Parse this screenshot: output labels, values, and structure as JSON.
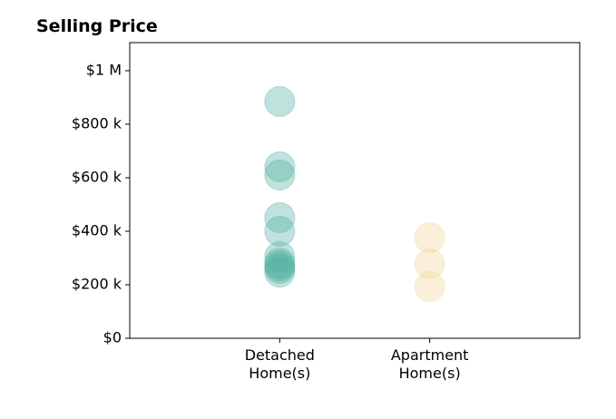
{
  "chart_data": {
    "type": "strip",
    "title": "Selling Price",
    "categories": [
      "Detached\nHome(s)",
      "Apartment\nHome(s)"
    ],
    "values": [
      [
        885000,
        641000,
        610000,
        451000,
        400000,
        305000,
        281000,
        271000,
        261000,
        247000
      ],
      [
        376000,
        278000,
        193000
      ]
    ],
    "colors": [
      "#4aab9d",
      "#f0d494"
    ],
    "ylim": [
      0,
      1105000
    ],
    "yticks": [
      {
        "value": 0,
        "label": "$0"
      },
      {
        "value": 200000,
        "label": "$200 k"
      },
      {
        "value": 400000,
        "label": "$400 k"
      },
      {
        "value": 600000,
        "label": "$600 k"
      },
      {
        "value": 800000,
        "label": "$800 k"
      },
      {
        "value": 1000000,
        "label": "$1 M"
      }
    ]
  }
}
